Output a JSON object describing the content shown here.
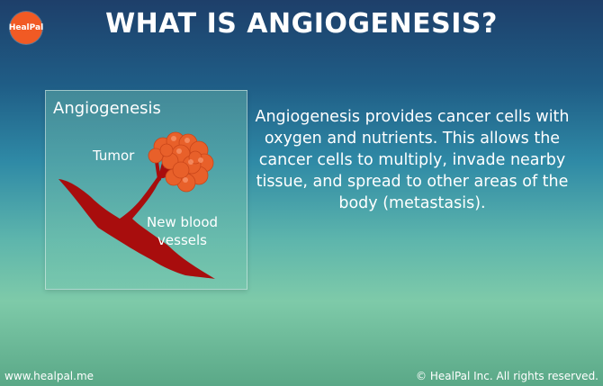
{
  "logo": {
    "text": "HealPal",
    "color": "#f15a24"
  },
  "header": {
    "title": "WHAT IS ANGIOGENESIS?"
  },
  "panel": {
    "title": "Angiogenesis",
    "labels": {
      "tumor": "Tumor",
      "vessels_line1": "New blood",
      "vessels_line2": "vessels"
    },
    "colors": {
      "tumor": "#e8602a",
      "vessel": "#a80d0d"
    }
  },
  "main": {
    "description": "Angiogenesis provides cancer cells with oxygen and nutrients. This allows the cancer cells to multiply, invade nearby tissue, and spread to other areas of the body (metastasis)."
  },
  "footer": {
    "website": "www.healpal.me",
    "copyright": "© HealPal Inc. All rights reserved."
  }
}
